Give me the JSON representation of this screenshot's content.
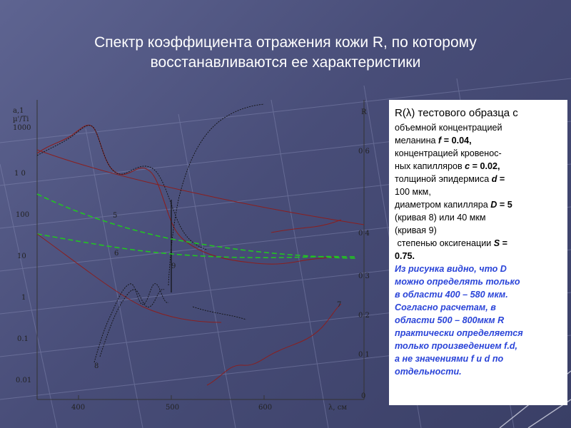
{
  "slide": {
    "title_line1": "Спектр коэффициента отражения кожи R, по которому",
    "title_line2": "восстанавливаются ее характеристики"
  },
  "figure": {
    "left_axis": {
      "label_lines": [
        "a,1",
        "µ'/Ti",
        "1000"
      ],
      "ticks": [
        "1 0",
        "100",
        "10",
        "1",
        "0.1",
        "0.01"
      ]
    },
    "right_axis": {
      "label": "R",
      "ticks": [
        "0 6",
        "0 4",
        "0 3",
        "0 2",
        "0 1",
        "0"
      ]
    },
    "x_axis": {
      "ticks": [
        "400",
        "500",
        "600"
      ],
      "label": "λ, см"
    },
    "curve_labels": {
      "c5": "5",
      "c6": "6",
      "c7": "7",
      "c8": "8",
      "c9": "9"
    },
    "colors": {
      "dark_red": "#8a1f1f",
      "dashed_green": "#22c422",
      "black": "#111111"
    }
  },
  "panel": {
    "head": "R(λ) тестового образца с",
    "lines": [
      "объемной концентрацией",
      "меланина",
      "концентрацией кровенос-",
      "ных капилляров",
      "толщиной эпидермиса",
      "100 мкм,",
      "диаметром капилляра",
      "(кривая 8) или 40 мкм",
      "(кривая 9)",
      "степенью оксигенации"
    ],
    "f_var": "f",
    "f_val": " = 0.04,",
    "c_var": "c",
    "c_val": " = 0.02,",
    "d_var": "d",
    "d_val": " =",
    "D_var": "D",
    "D_val": " = 5",
    "S_var": "S",
    "S_val": " =",
    "S_num": "0.75.",
    "note": [
      "Из рисунка видно, что D",
      "можно определять только",
      "в области 400 – 580 мкм.",
      "Согласно расчетам, в",
      "области 500 – 800мкм R",
      "практически определяется",
      "только произведением f.d,",
      "а не значениями f и d по",
      "отдельности."
    ]
  }
}
